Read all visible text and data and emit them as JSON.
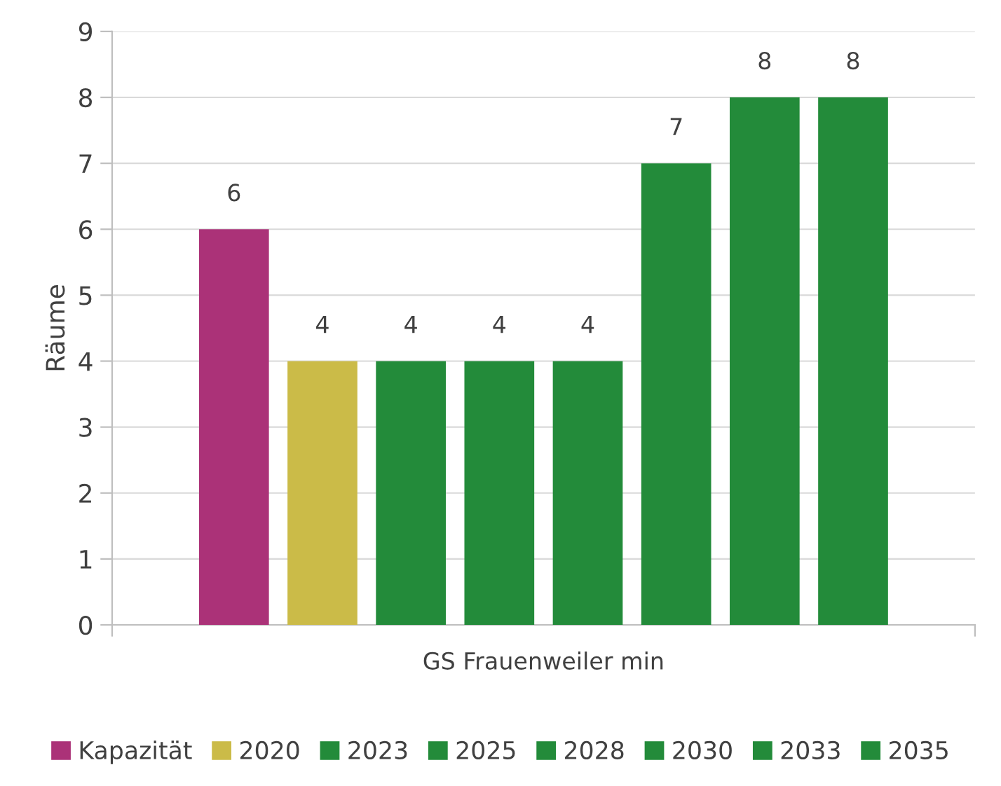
{
  "chart_data": {
    "type": "bar",
    "ylabel": "Räume",
    "categories": [
      "GS Frauenweiler min"
    ],
    "series": [
      {
        "name": "Kapazität",
        "color": "#ab3278",
        "values": [
          6
        ]
      },
      {
        "name": "2020",
        "color": "#cbbb48",
        "values": [
          4
        ]
      },
      {
        "name": "2023",
        "color": "#238b3a",
        "values": [
          4
        ]
      },
      {
        "name": "2025",
        "color": "#238b3a",
        "values": [
          4
        ]
      },
      {
        "name": "2028",
        "color": "#238b3a",
        "values": [
          4
        ]
      },
      {
        "name": "2030",
        "color": "#238b3a",
        "values": [
          7
        ]
      },
      {
        "name": "2033",
        "color": "#238b3a",
        "values": [
          8
        ]
      },
      {
        "name": "2035",
        "color": "#238b3a",
        "values": [
          8
        ]
      }
    ],
    "ylim": [
      0,
      9
    ],
    "yticks": [
      0,
      1,
      2,
      3,
      4,
      5,
      6,
      7,
      8,
      9
    ],
    "grid": "y",
    "data_labels": true,
    "legend": "bottom"
  }
}
